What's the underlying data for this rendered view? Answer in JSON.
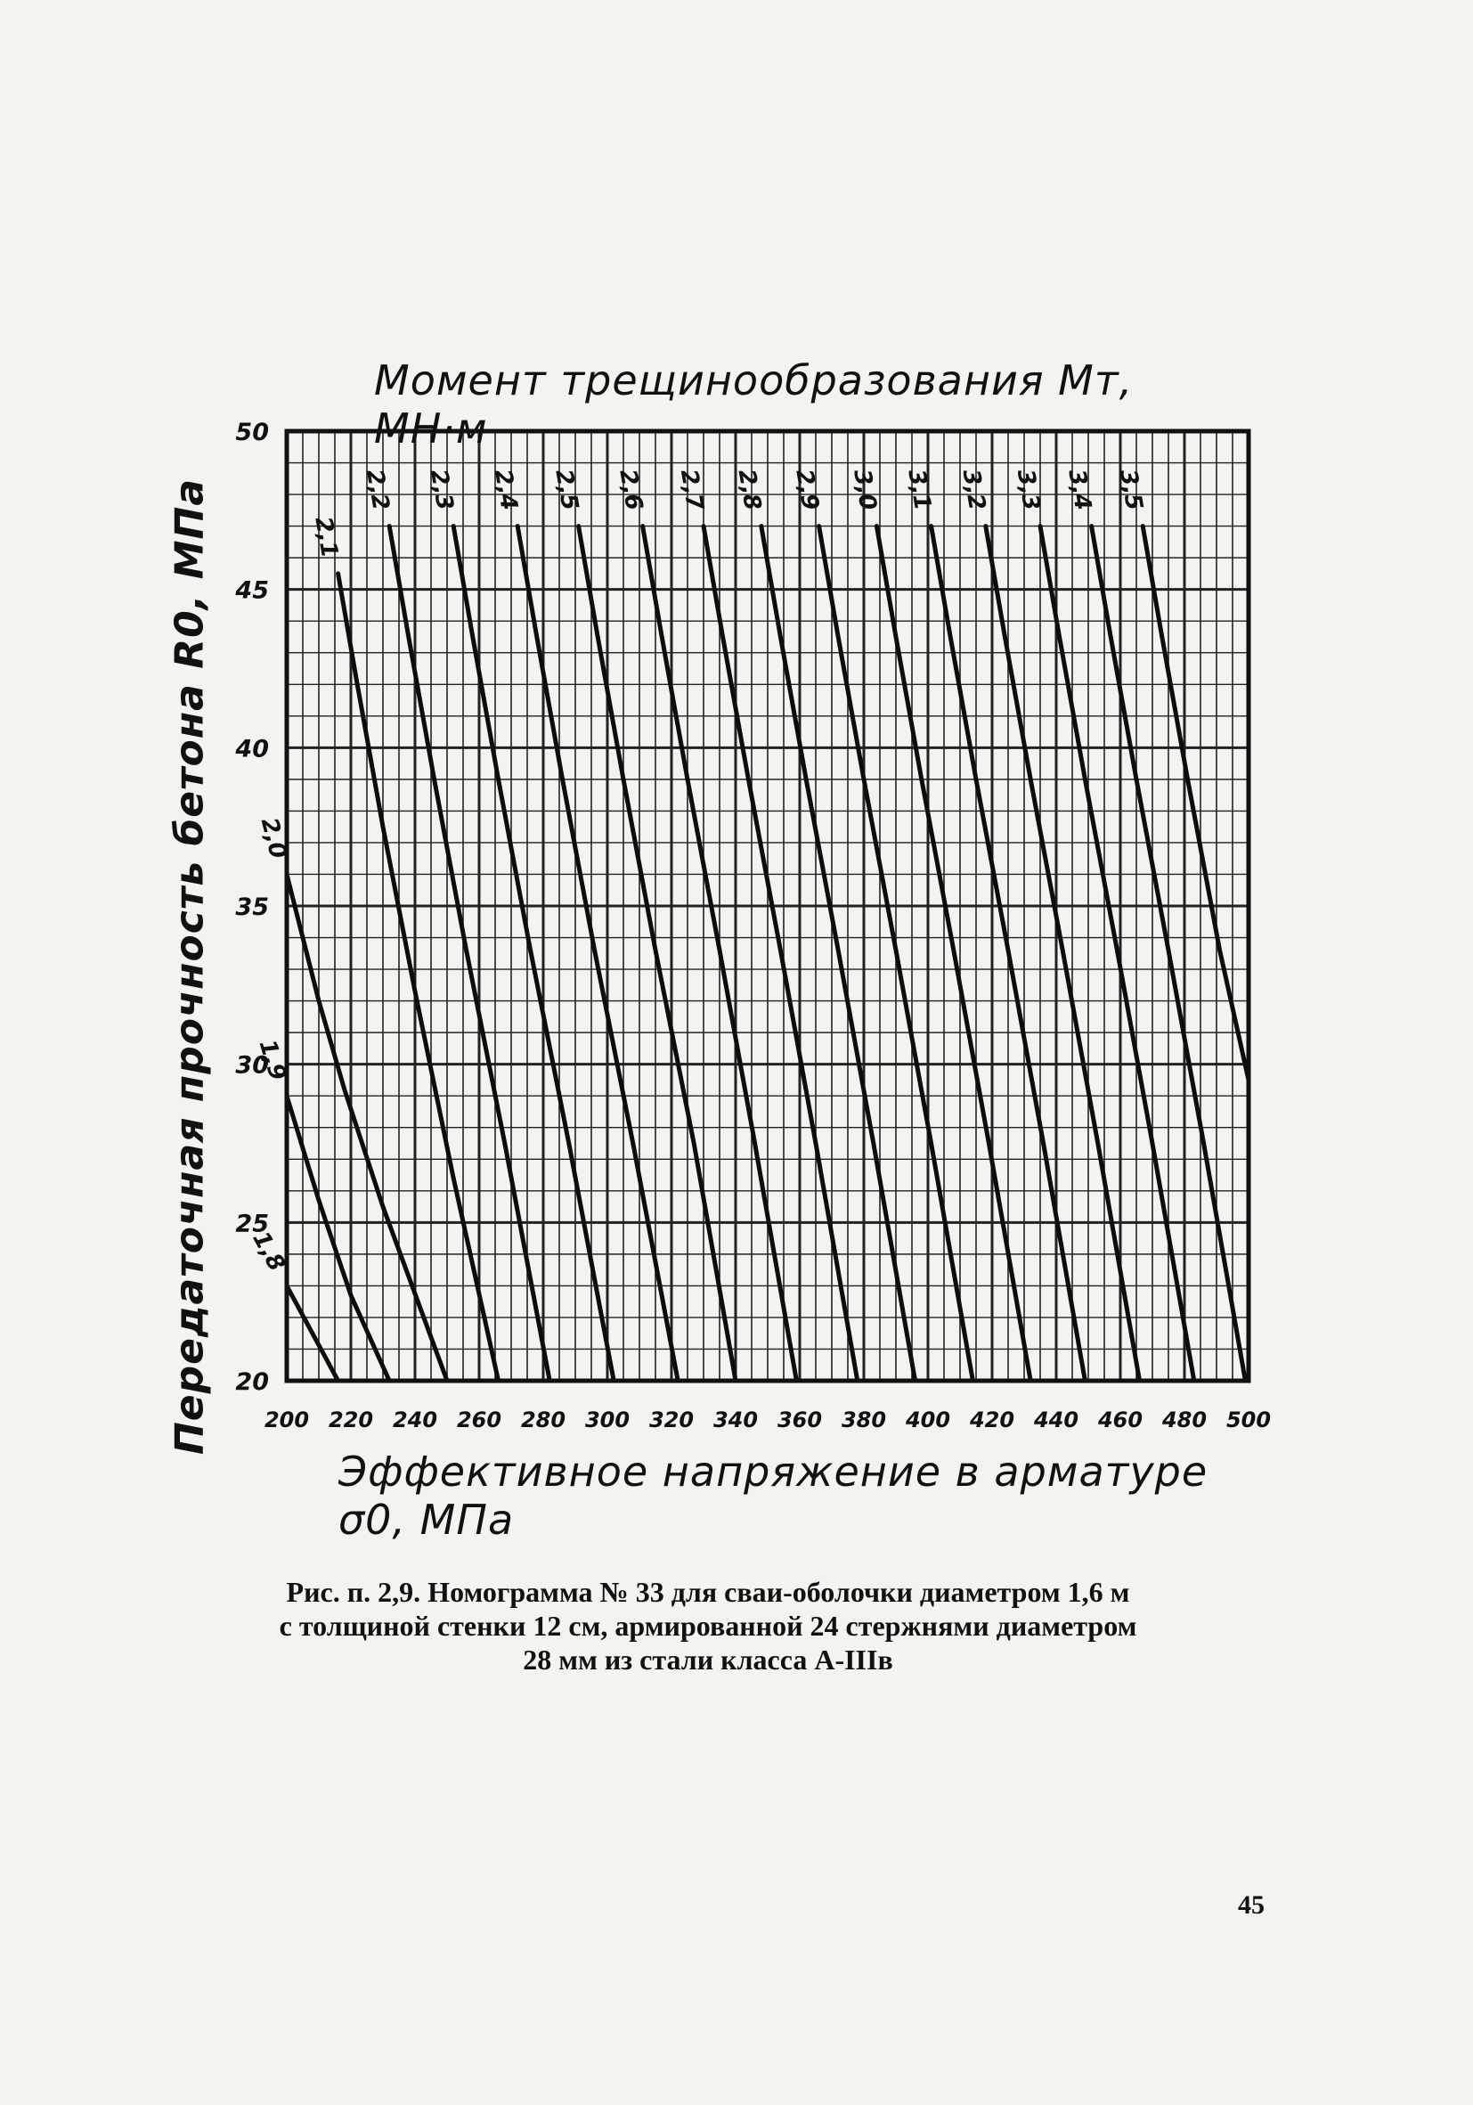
{
  "chart_data": {
    "type": "line",
    "title": "Момент трещинообразования Mт, МН·м",
    "xlabel": "Эффективное напряжение в арматуре σ0, МПа",
    "ylabel": "Передаточная прочность бетона R0, МПа",
    "xlim": [
      200,
      500
    ],
    "ylim": [
      20,
      50
    ],
    "x_ticks": [
      "200",
      "220",
      "240",
      "260",
      "280",
      "300",
      "320",
      "340",
      "360",
      "380",
      "400",
      "420",
      "440",
      "460",
      "480",
      "500"
    ],
    "y_ticks": [
      "20",
      "25",
      "30",
      "35",
      "40",
      "45",
      "50"
    ],
    "grid": true,
    "series": [
      {
        "name": "1,8",
        "x": [
          200,
          216
        ],
        "y": [
          23,
          20
        ]
      },
      {
        "name": "1,9",
        "x": [
          200,
          210,
          220,
          232
        ],
        "y": [
          29,
          25.7,
          22.7,
          20
        ]
      },
      {
        "name": "2,0",
        "x": [
          200,
          210,
          218,
          230,
          250
        ],
        "y": [
          36,
          32,
          29.2,
          25.5,
          20
        ]
      },
      {
        "name": "2,1",
        "x": [
          216,
          222,
          230,
          240,
          252,
          266
        ],
        "y": [
          45.5,
          42,
          37.5,
          32.3,
          26.4,
          20
        ]
      },
      {
        "name": "2,2",
        "x": [
          232,
          238,
          246,
          256,
          268,
          282
        ],
        "y": [
          47,
          43.5,
          39,
          33.6,
          27.5,
          20
        ]
      },
      {
        "name": "2,3",
        "x": [
          252,
          258,
          266,
          276,
          288,
          302
        ],
        "y": [
          47,
          43.5,
          39,
          33.6,
          27.5,
          20
        ]
      },
      {
        "name": "2,4",
        "x": [
          272,
          278,
          286,
          296,
          308,
          322
        ],
        "y": [
          47,
          43.5,
          39,
          33.6,
          27.5,
          20
        ]
      },
      {
        "name": "2,5",
        "x": [
          291,
          297,
          305,
          315,
          327,
          340
        ],
        "y": [
          47,
          43.5,
          39,
          33.6,
          27.5,
          20
        ]
      },
      {
        "name": "2,6",
        "x": [
          311,
          317,
          325,
          335,
          346,
          359
        ],
        "y": [
          47,
          43.5,
          39,
          33.6,
          27.5,
          20
        ]
      },
      {
        "name": "2,7",
        "x": [
          330,
          336,
          344,
          354,
          365,
          378
        ],
        "y": [
          47,
          43.5,
          39,
          33.6,
          27.5,
          20
        ]
      },
      {
        "name": "2,8",
        "x": [
          348,
          354,
          362,
          372,
          383,
          396
        ],
        "y": [
          47,
          43.5,
          39,
          33.6,
          27.5,
          20
        ]
      },
      {
        "name": "2,9",
        "x": [
          366,
          372,
          380,
          390,
          401,
          414
        ],
        "y": [
          47,
          43.5,
          39,
          33.6,
          27.5,
          20
        ]
      },
      {
        "name": "3,0",
        "x": [
          384,
          390,
          398,
          408,
          419,
          432
        ],
        "y": [
          47,
          43.5,
          39,
          33.6,
          27.5,
          20
        ]
      },
      {
        "name": "3,1",
        "x": [
          401,
          407,
          415,
          425,
          436,
          449
        ],
        "y": [
          47,
          43.5,
          39,
          33.6,
          27.5,
          20
        ]
      },
      {
        "name": "3,2",
        "x": [
          418,
          424,
          432,
          442,
          453,
          466
        ],
        "y": [
          47,
          43.5,
          39,
          33.6,
          27.5,
          20
        ]
      },
      {
        "name": "3,3",
        "x": [
          435,
          441,
          449,
          459,
          470,
          483
        ],
        "y": [
          47,
          43.5,
          39,
          33.6,
          27.5,
          20
        ]
      },
      {
        "name": "3,4",
        "x": [
          451,
          457,
          465,
          475,
          486,
          499
        ],
        "y": [
          47,
          43.5,
          39,
          33.6,
          27.5,
          20
        ]
      },
      {
        "name": "3,5",
        "x": [
          467,
          473,
          481,
          491,
          500
        ],
        "y": [
          47,
          43.5,
          39,
          33.6,
          29.5
        ]
      }
    ]
  },
  "caption": {
    "line1": "Рис. п. 2,9. Номограмма № 33 для сваи-оболочки диаметром 1,6 м",
    "line2": "с толщиной стенки 12 см, армированной 24 стержнями диаметром",
    "line3": "28 мм из стали класса А-IIIв"
  },
  "page_number": "45"
}
